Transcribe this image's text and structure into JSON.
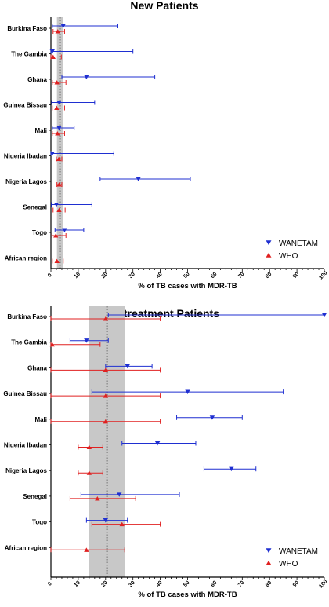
{
  "colors": {
    "wanetam": "#1f2fd1",
    "who": "#e02020",
    "band": "#c8c8c8",
    "axis": "#000000"
  },
  "chart_data": [
    {
      "type": "scatter",
      "title": "New Patients",
      "xlabel": "% of TB cases with MDR-TB",
      "xlim": [
        0,
        100
      ],
      "xticks": [
        "0",
        "10",
        "20",
        "30",
        "40",
        "50",
        "60",
        "70",
        "80",
        "90",
        "100"
      ],
      "legend_position": "bottom-right",
      "categories": [
        "Burkina Faso",
        "The Gambia",
        "Ghana",
        "Guinea Bissau",
        "Mali",
        "Nigeria Ibadan",
        "Nigeria Lagos",
        "Senegal",
        "Togo",
        "African region"
      ],
      "reference": {
        "value": 3.3,
        "band": [
          2.2,
          4.4
        ]
      },
      "series": [
        {
          "name": "WANETAM",
          "marker": "triangle-down",
          "values": [
            4.5,
            0.5,
            13,
            3,
            3,
            0.5,
            32,
            2,
            5,
            null
          ],
          "lower": [
            0.5,
            0,
            4,
            0.3,
            0.5,
            0,
            18,
            0.2,
            1.5,
            null
          ],
          "upper": [
            24.5,
            30,
            38,
            16,
            8.5,
            23,
            51,
            15,
            12,
            null
          ]
        },
        {
          "name": "WHO",
          "marker": "triangle-up",
          "values": [
            2.5,
            0.8,
            2.2,
            2.1,
            2.4,
            2.9,
            3,
            3,
            1.8,
            2.2
          ],
          "lower": [
            0.8,
            0,
            0.5,
            0.5,
            0.5,
            2,
            2.2,
            0.8,
            0.4,
            0.5
          ],
          "upper": [
            5,
            3.8,
            5.5,
            5,
            5,
            4,
            4,
            5.2,
            5.5,
            4.5
          ]
        }
      ]
    },
    {
      "type": "scatter",
      "title": "Retreatment Patients",
      "xlabel": "% of TB cases with MDR-TB",
      "xlim": [
        0,
        100
      ],
      "xticks": [
        "0",
        "10",
        "20",
        "30",
        "40",
        "50",
        "60",
        "70",
        "80",
        "90",
        "100"
      ],
      "legend_position": "bottom-right",
      "categories": [
        "Burkina Faso",
        "The Gambia",
        "Ghana",
        "Guinea Bissau",
        "Mali",
        "Nigeria Ibadan",
        "Nigeria Lagos",
        "Senegal",
        "Togo",
        "African region"
      ],
      "reference": {
        "value": 20.5,
        "band": [
          14,
          27
        ]
      },
      "series": [
        {
          "name": "WANETAM",
          "marker": "triangle-down",
          "values": [
            100,
            13,
            28,
            50,
            59,
            39,
            66,
            25,
            20,
            null
          ],
          "lower": [
            21,
            7,
            20,
            15,
            46,
            26,
            56,
            11,
            13,
            null
          ],
          "upper": [
            100,
            21,
            37,
            85,
            70,
            53,
            75,
            47,
            28,
            null
          ]
        },
        {
          "name": "WHO",
          "marker": "triangle-up",
          "values": [
            20,
            0.5,
            20,
            20,
            20,
            14,
            14,
            17,
            26,
            13
          ],
          "lower": [
            0,
            0,
            0,
            0,
            0,
            10,
            10,
            7,
            15,
            0
          ],
          "upper": [
            40,
            18,
            40,
            40,
            40,
            19,
            19,
            31,
            40,
            27
          ]
        }
      ]
    }
  ]
}
